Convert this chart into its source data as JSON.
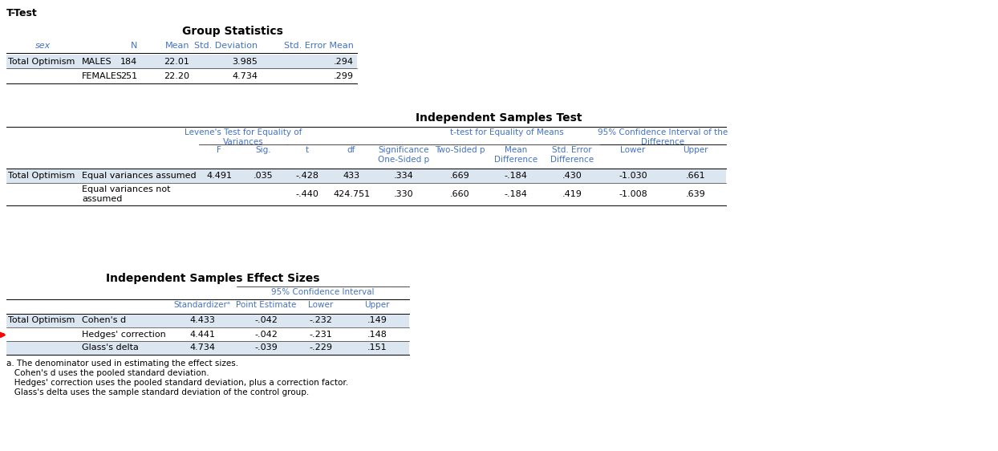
{
  "title_ttest": "T-Test",
  "group_stats_title": "Group Statistics",
  "group_stats_headers": [
    "sex",
    "N",
    "Mean",
    "Std. Deviation",
    "Std. Error Mean"
  ],
  "group_stats_row1": [
    "Total Optimism",
    "MALES",
    "184",
    "22.01",
    "3.985",
    ".294"
  ],
  "group_stats_row2": [
    "",
    "FEMALES",
    "251",
    "22.20",
    "4.734",
    ".299"
  ],
  "ind_samples_title": "Independent Samples Test",
  "levene_header": "Levene's Test for Equality of\nVariances",
  "ttest_header": "t-test for Equality of Means",
  "ci_header": "95% Confidence Interval of the\nDifference",
  "ind_row1_label": "Equal variances assumed",
  "ind_row2_label": "Equal variances not\nassumed",
  "row_label": "Total Optimism",
  "ind_row1_data": [
    "4.491",
    ".035",
    "-.428",
    "433",
    ".334",
    ".669",
    "-.184",
    ".430",
    "-1.030",
    ".661"
  ],
  "ind_row2_data": [
    "",
    "",
    "-.440",
    "424.751",
    ".330",
    ".660",
    "-.184",
    ".419",
    "-1.008",
    ".639"
  ],
  "effect_sizes_title": "Independent Samples Effect Sizes",
  "effect_ci_header": "95% Confidence Interval",
  "effect_row1": [
    "Total Optimism",
    "Cohen's d",
    "4.433",
    "-.042",
    "-.232",
    ".149"
  ],
  "effect_row2": [
    "",
    "Hedges' correction",
    "4.441",
    "-.042",
    "-.231",
    ".148"
  ],
  "effect_row3": [
    "",
    "Glass's delta",
    "4.734",
    "-.039",
    "-.229",
    ".151"
  ],
  "footnote_a": "a. The denominator used in estimating the effect sizes.",
  "footnote_b": "   Cohen's d uses the pooled standard deviation.",
  "footnote_c": "   Hedges' correction uses the pooled standard deviation, plus a correction factor.",
  "footnote_d": "   Glass's delta uses the sample standard deviation of the control group.",
  "hc": "#4472c4",
  "tc": "#000000",
  "alt": "#dce6f1",
  "white": "#ffffff"
}
